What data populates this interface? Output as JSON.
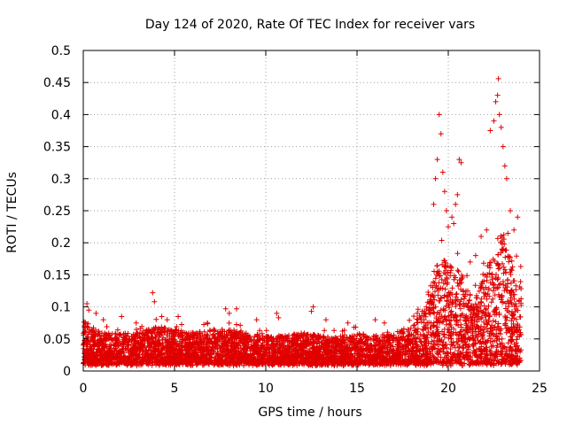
{
  "chart_data": {
    "type": "scatter",
    "title": "Day 124 of 2020, Rate Of TEC Index for receiver vars",
    "xlabel": "GPS time / hours",
    "ylabel": "ROTI / TECUs",
    "xlim": [
      0,
      25
    ],
    "ylim": [
      0,
      0.5
    ],
    "grid": true,
    "marker": "plus",
    "color": "#e00000",
    "x_ticks": [
      0,
      5,
      10,
      15,
      20,
      25
    ],
    "x_tick_labels": [
      "0",
      "5",
      "10",
      "15",
      "20",
      "25"
    ],
    "y_ticks": [
      0,
      0.05,
      0.1,
      0.15,
      0.2,
      0.25,
      0.3,
      0.35,
      0.4,
      0.45,
      0.5
    ],
    "y_tick_labels": [
      "0",
      "0.05",
      "0.1",
      "0.15",
      "0.2",
      "0.25",
      "0.3",
      "0.35",
      "0.4",
      "0.45",
      "0.5"
    ],
    "envelope": {
      "description": "approximate upper envelope of the dense point cloud (hour, ROTI)",
      "x": [
        0,
        0.5,
        1,
        2,
        3,
        4,
        5,
        6,
        7,
        8,
        9,
        10,
        11,
        12,
        13,
        14,
        15,
        16,
        17,
        18,
        18.5,
        19,
        19.5,
        20,
        20.5,
        21,
        21.5,
        22,
        22.5,
        23,
        23.5,
        24
      ],
      "y": [
        0.08,
        0.07,
        0.06,
        0.06,
        0.06,
        0.07,
        0.065,
        0.06,
        0.065,
        0.065,
        0.06,
        0.055,
        0.055,
        0.06,
        0.055,
        0.055,
        0.06,
        0.055,
        0.06,
        0.07,
        0.09,
        0.14,
        0.18,
        0.17,
        0.16,
        0.13,
        0.12,
        0.15,
        0.2,
        0.22,
        0.17,
        0.14
      ]
    },
    "highlighted_points": {
      "x": [
        0.2,
        0.3,
        0.7,
        1.1,
        2.1,
        2.9,
        3.8,
        3.9,
        4.3,
        4.6,
        5.2,
        6.8,
        7.8,
        8.0,
        8.4,
        9.5,
        10.6,
        10.7,
        12.6,
        12.5,
        13.3,
        14.5,
        16.0,
        16.5,
        18.3,
        18.8,
        19.2,
        19.3,
        19.4,
        19.5,
        19.6,
        19.7,
        19.8,
        19.9,
        20.0,
        20.2,
        20.3,
        20.4,
        20.5,
        20.6,
        20.7,
        21.2,
        21.5,
        21.8,
        22.1,
        22.3,
        22.5,
        22.6,
        22.7,
        22.75,
        22.8,
        22.9,
        23.0,
        23.1,
        23.2,
        23.4,
        23.6,
        23.8
      ],
      "y": [
        0.105,
        0.095,
        0.09,
        0.08,
        0.085,
        0.075,
        0.122,
        0.108,
        0.085,
        0.08,
        0.085,
        0.075,
        0.097,
        0.09,
        0.097,
        0.08,
        0.09,
        0.083,
        0.1,
        0.093,
        0.08,
        0.075,
        0.08,
        0.075,
        0.09,
        0.1,
        0.26,
        0.3,
        0.33,
        0.4,
        0.37,
        0.31,
        0.28,
        0.25,
        0.225,
        0.24,
        0.23,
        0.26,
        0.275,
        0.33,
        0.325,
        0.17,
        0.18,
        0.21,
        0.22,
        0.375,
        0.39,
        0.42,
        0.43,
        0.456,
        0.4,
        0.38,
        0.35,
        0.32,
        0.3,
        0.25,
        0.22,
        0.24
      ]
    }
  }
}
